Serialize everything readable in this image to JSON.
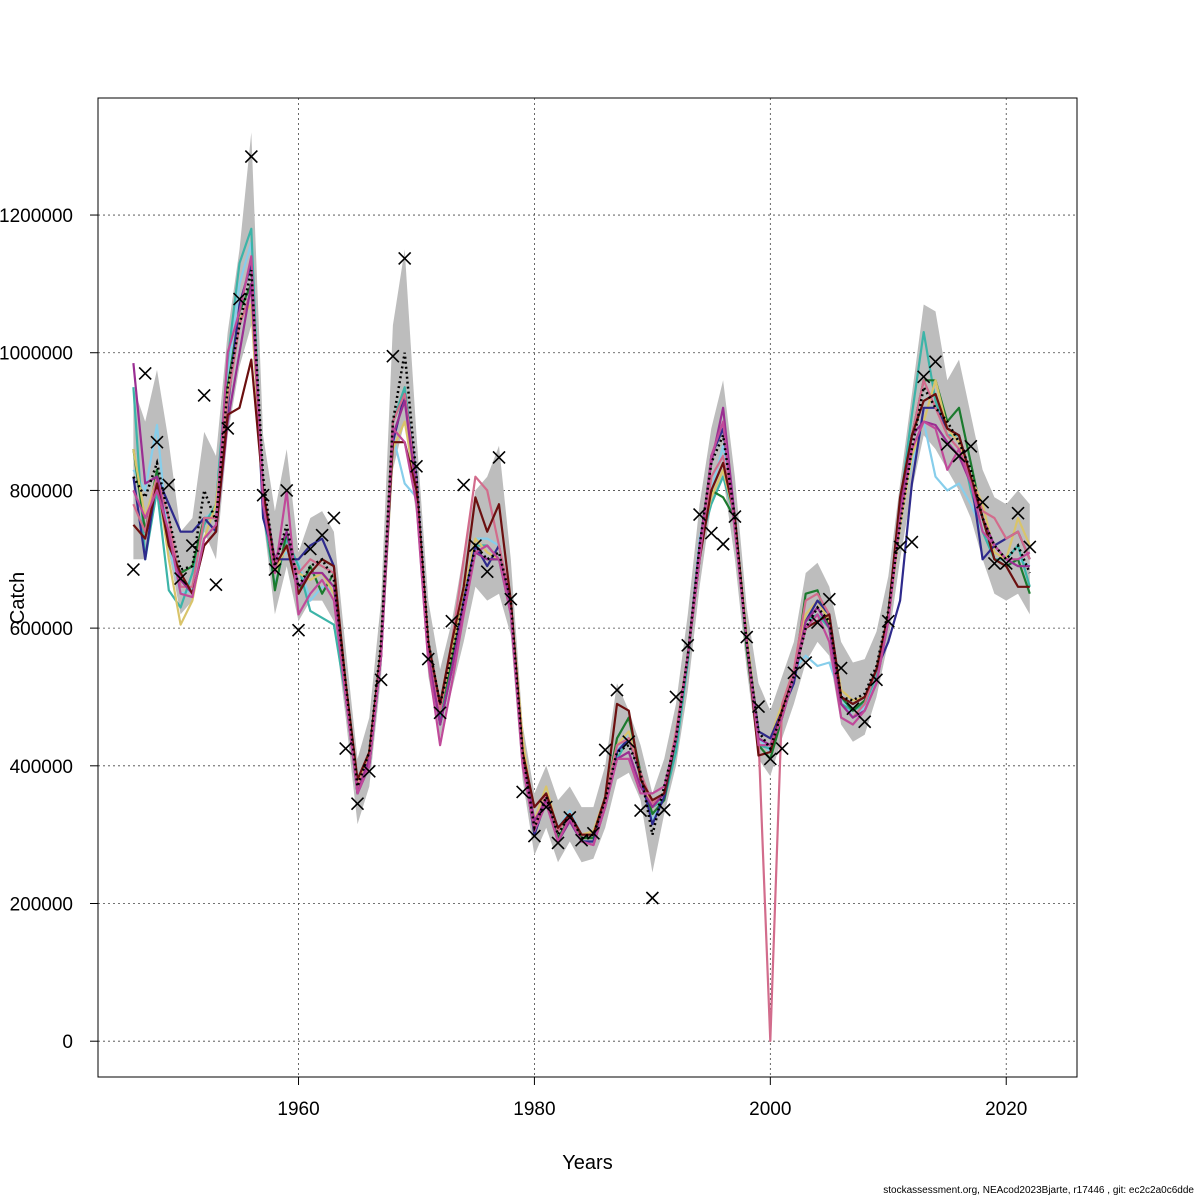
{
  "chart_data": {
    "type": "line",
    "title": "",
    "xlabel": "Years",
    "ylabel": "Catch",
    "xlim": [
      1943,
      2026
    ],
    "ylim": [
      -52000,
      1370000
    ],
    "x_ticks": [
      1960,
      1980,
      2000,
      2020
    ],
    "y_ticks": [
      0,
      200000,
      400000,
      600000,
      800000,
      1000000,
      1200000
    ],
    "x_tick_labels": [
      "1960",
      "1980",
      "2000",
      "2020"
    ],
    "y_tick_labels": [
      "0",
      "200000",
      "400000",
      "600000",
      "800000",
      "1000000",
      "1200000"
    ],
    "grid": true,
    "years": [
      1946,
      1947,
      1948,
      1949,
      1950,
      1951,
      1952,
      1953,
      1954,
      1955,
      1956,
      1957,
      1958,
      1959,
      1960,
      1961,
      1962,
      1963,
      1964,
      1965,
      1966,
      1967,
      1968,
      1969,
      1970,
      1971,
      1972,
      1973,
      1974,
      1975,
      1976,
      1977,
      1978,
      1979,
      1980,
      1981,
      1982,
      1983,
      1984,
      1985,
      1986,
      1987,
      1988,
      1989,
      1990,
      1991,
      1992,
      1993,
      1994,
      1995,
      1996,
      1997,
      1998,
      1999,
      2000,
      2001,
      2002,
      2003,
      2004,
      2005,
      2006,
      2007,
      2008,
      2009,
      2010,
      2011,
      2012,
      2013,
      2014,
      2015,
      2016,
      2017,
      2018,
      2019,
      2020,
      2021,
      2022
    ],
    "estimate": [
      820000,
      790000,
      840000,
      760000,
      685000,
      690000,
      800000,
      755000,
      950000,
      1040000,
      1120000,
      820000,
      690000,
      750000,
      660000,
      690000,
      700000,
      670000,
      520000,
      370000,
      420000,
      580000,
      900000,
      1000000,
      820000,
      580000,
      490000,
      560000,
      640000,
      720000,
      700000,
      710000,
      640000,
      420000,
      310000,
      355000,
      300000,
      330000,
      295000,
      300000,
      350000,
      420000,
      430000,
      390000,
      300000,
      370000,
      440000,
      560000,
      720000,
      840000,
      880000,
      760000,
      580000,
      450000,
      425000,
      480000,
      530000,
      600000,
      630000,
      610000,
      500000,
      495000,
      505000,
      545000,
      625000,
      750000,
      860000,
      950000,
      920000,
      900000,
      870000,
      830000,
      760000,
      720000,
      700000,
      720000,
      680000
    ],
    "ci_lower": [
      700000,
      700000,
      790000,
      710000,
      620000,
      640000,
      740000,
      700000,
      880000,
      980000,
      1040000,
      760000,
      620000,
      690000,
      610000,
      640000,
      640000,
      610000,
      470000,
      315000,
      370000,
      530000,
      830000,
      900000,
      760000,
      530000,
      440000,
      510000,
      580000,
      660000,
      640000,
      650000,
      590000,
      380000,
      270000,
      310000,
      260000,
      290000,
      260000,
      265000,
      310000,
      380000,
      390000,
      350000,
      245000,
      330000,
      400000,
      510000,
      660000,
      780000,
      820000,
      700000,
      540000,
      410000,
      385000,
      440000,
      490000,
      550000,
      580000,
      560000,
      460000,
      435000,
      445000,
      500000,
      580000,
      700000,
      800000,
      880000,
      860000,
      830000,
      800000,
      760000,
      700000,
      650000,
      640000,
      650000,
      620000
    ],
    "ci_upper": [
      950000,
      900000,
      975000,
      870000,
      740000,
      760000,
      885000,
      850000,
      1030000,
      1150000,
      1320000,
      880000,
      770000,
      860000,
      710000,
      760000,
      770000,
      740000,
      570000,
      410000,
      470000,
      640000,
      1040000,
      1150000,
      880000,
      640000,
      540000,
      610000,
      710000,
      800000,
      820000,
      865000,
      700000,
      460000,
      360000,
      400000,
      350000,
      370000,
      340000,
      340000,
      400000,
      520000,
      480000,
      430000,
      360000,
      410000,
      490000,
      620000,
      780000,
      890000,
      960000,
      820000,
      630000,
      520000,
      480000,
      530000,
      580000,
      680000,
      695000,
      660000,
      580000,
      550000,
      555000,
      595000,
      675000,
      810000,
      940000,
      1070000,
      1060000,
      960000,
      990000,
      910000,
      830000,
      790000,
      780000,
      800000,
      780000
    ],
    "observed": [
      685000,
      970000,
      870000,
      808000,
      672000,
      720000,
      938000,
      663000,
      890000,
      1078000,
      1285000,
      793000,
      685000,
      800000,
      597000,
      715000,
      735000,
      760000,
      425000,
      345000,
      392000,
      525000,
      995000,
      1137000,
      835000,
      555000,
      477000,
      610000,
      808000,
      720000,
      682000,
      848000,
      642000,
      362000,
      298000,
      340000,
      288000,
      325000,
      292000,
      302000,
      423000,
      510000,
      435000,
      335000,
      208000,
      336000,
      500000,
      575000,
      765000,
      738000,
      722000,
      762000,
      587000,
      486000,
      410000,
      425000,
      535000,
      550000,
      608000,
      642000,
      542000,
      483000,
      464000,
      525000,
      610000,
      718000,
      725000,
      965000,
      987000,
      867000,
      850000,
      864000,
      783000,
      694000,
      694000,
      767000,
      718000
    ],
    "retro_series": [
      {
        "color": "#87CEEB",
        "values": [
          830000,
          800000,
          895000,
          720000,
          650000,
          655000,
          760000,
          770000,
          965000,
          1100000,
          1160000,
          760000,
          700000,
          710000,
          695000,
          640000,
          660000,
          655000,
          500000,
          380000,
          420000,
          570000,
          880000,
          810000,
          790000,
          560000,
          480000,
          550000,
          640000,
          730000,
          730000,
          720000,
          640000,
          420000,
          310000,
          365000,
          310000,
          335000,
          300000,
          300000,
          355000,
          420000,
          450000,
          380000,
          320000,
          355000,
          440000,
          560000,
          730000,
          800000,
          865000,
          760000,
          590000,
          440000,
          420000,
          480000,
          540000,
          560000,
          545000,
          550000,
          500000,
          470000,
          485000,
          520000,
          610000,
          760000,
          840000,
          900000,
          820000,
          800000,
          810000,
          780000,
          740000,
          700000,
          690000,
          700000,
          690000
        ]
      },
      {
        "color": "#3CB4A8",
        "values": [
          950000,
          700000,
          800000,
          655000,
          630000,
          680000,
          750000,
          780000,
          990000,
          1130000,
          1180000,
          770000,
          660000,
          730000,
          690000,
          625000,
          615000,
          605000,
          500000,
          370000,
          400000,
          560000,
          900000,
          950000,
          810000,
          570000,
          470000,
          560000,
          650000,
          720000,
          720000,
          700000,
          620000,
          410000,
          300000,
          350000,
          290000,
          320000,
          290000,
          290000,
          345000,
          410000,
          440000,
          390000,
          340000,
          350000,
          420000,
          550000,
          720000,
          780000,
          820000,
          760000,
          570000,
          430000,
          425000,
          475000,
          530000,
          610000,
          620000,
          600000,
          490000,
          480000,
          490000,
          530000,
          620000,
          780000,
          910000,
          1030000,
          930000,
          880000,
          880000,
          800000,
          740000,
          700000,
          700000,
          720000,
          660000
        ]
      },
      {
        "color": "#1B7A2E",
        "values": [
          860000,
          740000,
          830000,
          720000,
          680000,
          690000,
          760000,
          760000,
          950000,
          1060000,
          1100000,
          800000,
          655000,
          740000,
          650000,
          690000,
          650000,
          680000,
          510000,
          360000,
          410000,
          570000,
          900000,
          940000,
          810000,
          560000,
          480000,
          555000,
          640000,
          710000,
          700000,
          700000,
          640000,
          410000,
          310000,
          355000,
          295000,
          325000,
          295000,
          295000,
          350000,
          440000,
          470000,
          390000,
          330000,
          350000,
          440000,
          560000,
          720000,
          800000,
          790000,
          760000,
          570000,
          430000,
          410000,
          470000,
          530000,
          650000,
          655000,
          600000,
          500000,
          480000,
          495000,
          540000,
          620000,
          780000,
          880000,
          960000,
          960000,
          900000,
          920000,
          840000,
          760000,
          700000,
          690000,
          700000,
          650000
        ]
      },
      {
        "color": "#D9C46A",
        "values": [
          860000,
          760000,
          820000,
          700000,
          605000,
          640000,
          730000,
          780000,
          940000,
          1050000,
          1070000,
          780000,
          680000,
          720000,
          680000,
          670000,
          680000,
          650000,
          520000,
          370000,
          420000,
          560000,
          860000,
          900000,
          800000,
          570000,
          480000,
          570000,
          650000,
          730000,
          710000,
          700000,
          640000,
          440000,
          320000,
          370000,
          305000,
          330000,
          300000,
          305000,
          355000,
          430000,
          450000,
          380000,
          340000,
          360000,
          450000,
          560000,
          720000,
          790000,
          830000,
          760000,
          590000,
          450000,
          440000,
          490000,
          540000,
          620000,
          640000,
          610000,
          510000,
          495000,
          500000,
          540000,
          610000,
          750000,
          850000,
          900000,
          960000,
          890000,
          870000,
          820000,
          780000,
          710000,
          700000,
          760000,
          720000
        ]
      },
      {
        "color": "#2E2A8C",
        "values": [
          820000,
          700000,
          820000,
          780000,
          740000,
          740000,
          760000,
          740000,
          920000,
          1070000,
          1130000,
          760000,
          700000,
          700000,
          700000,
          720000,
          730000,
          690000,
          500000,
          360000,
          400000,
          560000,
          870000,
          940000,
          820000,
          570000,
          460000,
          540000,
          640000,
          720000,
          690000,
          720000,
          630000,
          410000,
          300000,
          350000,
          290000,
          320000,
          290000,
          290000,
          350000,
          420000,
          440000,
          385000,
          315000,
          355000,
          440000,
          560000,
          700000,
          850000,
          890000,
          760000,
          580000,
          450000,
          440000,
          480000,
          520000,
          610000,
          640000,
          620000,
          500000,
          490000,
          500000,
          540000,
          580000,
          640000,
          810000,
          920000,
          920000,
          890000,
          880000,
          820000,
          700000,
          720000,
          730000,
          740000,
          700000
        ]
      },
      {
        "color": "#D26C8C",
        "values": [
          780000,
          740000,
          820000,
          760000,
          660000,
          660000,
          760000,
          760000,
          930000,
          1040000,
          1090000,
          790000,
          690000,
          720000,
          680000,
          700000,
          690000,
          680000,
          520000,
          370000,
          410000,
          570000,
          900000,
          940000,
          810000,
          570000,
          480000,
          580000,
          700000,
          820000,
          800000,
          720000,
          640000,
          420000,
          310000,
          360000,
          305000,
          330000,
          300000,
          300000,
          350000,
          430000,
          440000,
          390000,
          345000,
          360000,
          450000,
          560000,
          700000,
          820000,
          850000,
          760000,
          580000,
          440000,
          420,
          490000,
          540000,
          640000,
          650000,
          620000,
          490000,
          470000,
          490000,
          540000,
          610000,
          760000,
          880000,
          960000,
          920000,
          880000,
          860000,
          820000,
          770000,
          760000,
          730000,
          740000,
          700000
        ]
      },
      {
        "color": "#9A2E92",
        "values": [
          985000,
          810000,
          820000,
          730000,
          670000,
          650000,
          720000,
          740000,
          900000,
          1000000,
          1100000,
          800000,
          700000,
          740000,
          660000,
          680000,
          680000,
          660000,
          510000,
          360000,
          410000,
          560000,
          880000,
          930000,
          800000,
          560000,
          460000,
          540000,
          630000,
          710000,
          700000,
          700000,
          640000,
          420000,
          320000,
          350000,
          290000,
          320000,
          290000,
          285000,
          340000,
          410000,
          420000,
          370000,
          340000,
          360000,
          440000,
          560000,
          720000,
          840000,
          920000,
          760000,
          580000,
          440000,
          430000,
          480000,
          530000,
          610000,
          630000,
          600000,
          490000,
          470000,
          480000,
          520000,
          610000,
          770000,
          880000,
          900000,
          895000,
          870000,
          850000,
          810000,
          760000,
          720000,
          700000,
          690000,
          690000
        ]
      },
      {
        "color": "#6B0F0F",
        "values": [
          750000,
          730000,
          810000,
          720000,
          680000,
          650000,
          720000,
          740000,
          910000,
          920000,
          990000,
          800000,
          690000,
          720000,
          650000,
          680000,
          700000,
          690000,
          520000,
          380000,
          420000,
          570000,
          870000,
          870000,
          800000,
          580000,
          490000,
          580000,
          660000,
          790000,
          740000,
          780000,
          640000,
          420000,
          340000,
          360000,
          310000,
          330000,
          300000,
          300000,
          355000,
          490000,
          480000,
          380000,
          350000,
          360000,
          440000,
          560000,
          700000,
          800000,
          840000,
          760000,
          580000,
          415000,
          420000,
          480000,
          530000,
          600000,
          610000,
          620000,
          500000,
          490000,
          500000,
          540000,
          620000,
          790000,
          880000,
          930000,
          940000,
          890000,
          880000,
          820000,
          760000,
          700000,
          690000,
          660000,
          660000
        ]
      },
      {
        "color": "#C04A9A",
        "values": [
          800000,
          760000,
          800000,
          740000,
          650000,
          645000,
          730000,
          750000,
          1000000,
          1060000,
          1140000,
          780000,
          680000,
          800000,
          620000,
          650000,
          670000,
          640000,
          500000,
          360000,
          400000,
          560000,
          890000,
          870000,
          780000,
          550000,
          430000,
          520000,
          620000,
          710000,
          720000,
          700000,
          620000,
          400000,
          305000,
          345000,
          290000,
          325000,
          290000,
          285000,
          340000,
          410000,
          410000,
          360000,
          360000,
          370000,
          440000,
          560000,
          700000,
          850000,
          900000,
          740000,
          580000,
          430000,
          430000,
          470000,
          530000,
          600000,
          620000,
          580000,
          470000,
          460000,
          480000,
          520000,
          610000,
          760000,
          860000,
          900000,
          890000,
          830000,
          860000,
          810000,
          740000,
          720000,
          700000,
          700000,
          710000
        ]
      }
    ]
  },
  "footer": {
    "note": "stockassessment.org, NEAcod2023Bjarte, r17446 , git: ec2c2a0c6dde"
  }
}
